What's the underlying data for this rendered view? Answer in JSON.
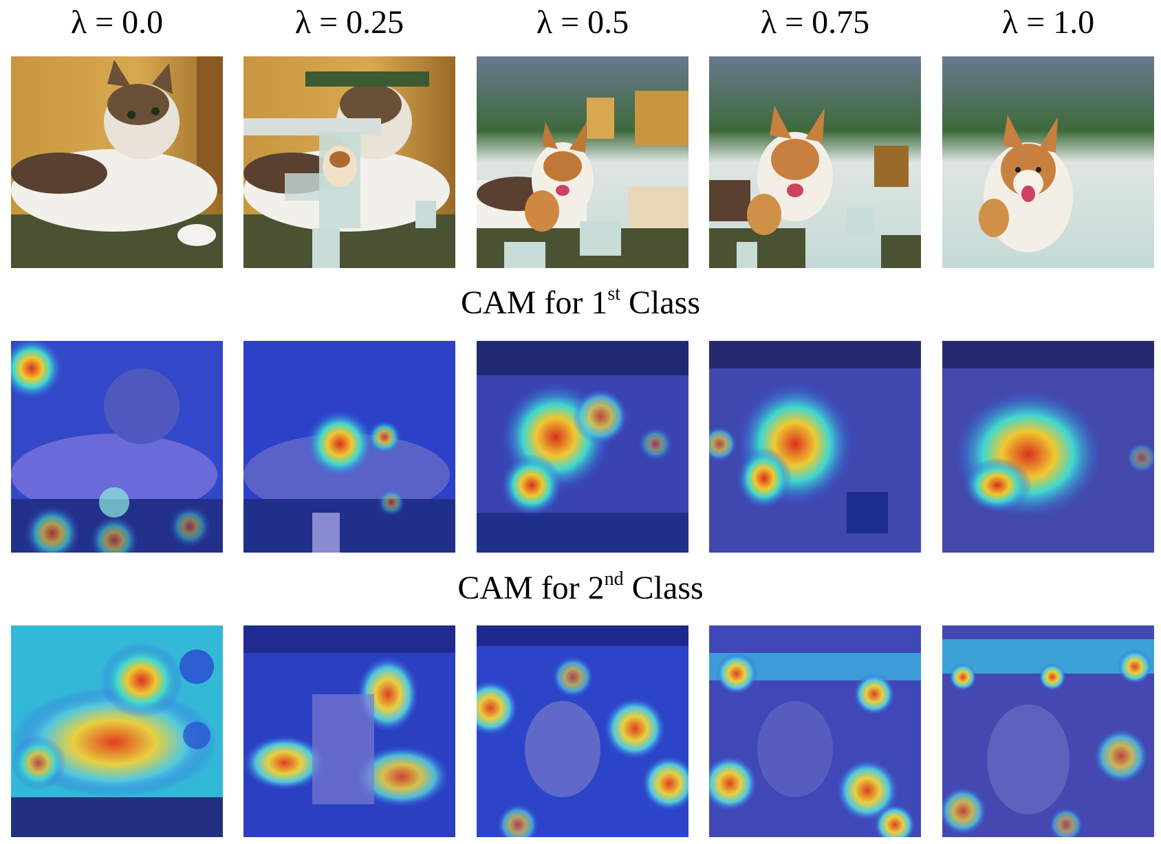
{
  "lambdas": [
    "λ = 0.0",
    "λ = 0.25",
    "λ = 0.5",
    "λ = 0.75",
    "λ = 1.0"
  ],
  "rows": {
    "cam1": {
      "prefix": "CAM for 1",
      "sup": "st",
      "suffix": " Class"
    },
    "cam2": {
      "prefix": "CAM for 2",
      "sup": "nd",
      "suffix": " Class"
    }
  },
  "images": {
    "row1_desc": [
      "cat",
      "cutmix-cat-dog-0.25",
      "cutmix-cat-dog-0.5",
      "cutmix-cat-dog-0.75",
      "dog"
    ]
  },
  "colors": {
    "cat_wall": "#d4a24a",
    "carpet": "#4a5232",
    "water": "#c8dcd8",
    "cam_blue": "#2a3fd0",
    "cam_red": "#d83a20"
  }
}
